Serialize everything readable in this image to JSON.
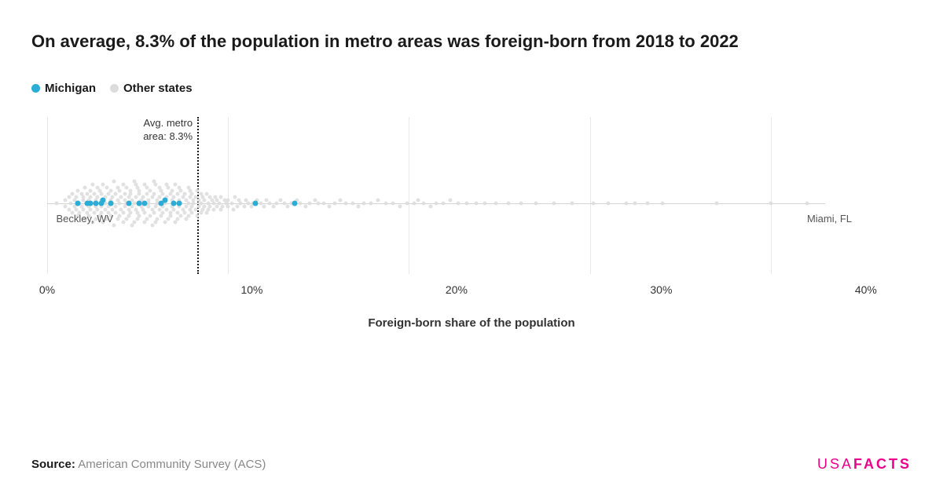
{
  "title": "On average, 8.3% of the population in metro areas was foreign-born from 2018 to 2022",
  "legend": {
    "items": [
      {
        "label": "Michigan",
        "color": "#2badd6"
      },
      {
        "label": "Other states",
        "color": "#dcdcdc"
      }
    ]
  },
  "chart": {
    "type": "beeswarm",
    "x_axis": {
      "title": "Foreign-born share of the population",
      "min": 0,
      "max": 43,
      "ticks": [
        0,
        10,
        20,
        30,
        40
      ],
      "tick_labels": [
        "0%",
        "10%",
        "20%",
        "30%",
        "40%"
      ],
      "tick_fontsize": 14,
      "title_fontsize": 15
    },
    "gridline_color": "#e8e8e8",
    "baseline_color": "#d4d4d4",
    "background_color": "#ffffff",
    "avg_line": {
      "value": 8.3,
      "label_line1": "Avg. metro",
      "label_line2": "area: 8.3%",
      "color": "#1a1a1a",
      "style": "dotted"
    },
    "callouts": [
      {
        "text": "Beckley, WV",
        "x": 0.5,
        "side": "left"
      },
      {
        "text": "Miami, FL",
        "x": 42,
        "side": "right"
      }
    ],
    "dot_size_other": 5,
    "dot_size_highlight": 7,
    "highlight_color": "#2badd6",
    "other_color": "#dcdcdc",
    "other_opacity": 0.85,
    "y_jitter_max": 28,
    "other_points": [
      {
        "x": 0.5,
        "y": 0
      },
      {
        "x": 1.0,
        "y": 4
      },
      {
        "x": 1.0,
        "y": -4
      },
      {
        "x": 1.2,
        "y": 8
      },
      {
        "x": 1.2,
        "y": -8
      },
      {
        "x": 1.3,
        "y": 0
      },
      {
        "x": 1.4,
        "y": 12
      },
      {
        "x": 1.4,
        "y": -12
      },
      {
        "x": 1.5,
        "y": 4
      },
      {
        "x": 1.5,
        "y": -4
      },
      {
        "x": 1.6,
        "y": 8
      },
      {
        "x": 1.6,
        "y": -8
      },
      {
        "x": 1.7,
        "y": 16
      },
      {
        "x": 1.7,
        "y": -16
      },
      {
        "x": 1.8,
        "y": 0
      },
      {
        "x": 1.8,
        "y": 12
      },
      {
        "x": 1.9,
        "y": -12
      },
      {
        "x": 1.9,
        "y": 4
      },
      {
        "x": 2.0,
        "y": -4
      },
      {
        "x": 2.0,
        "y": 8
      },
      {
        "x": 2.0,
        "y": -8
      },
      {
        "x": 2.1,
        "y": 20
      },
      {
        "x": 2.1,
        "y": -20
      },
      {
        "x": 2.2,
        "y": 0
      },
      {
        "x": 2.2,
        "y": 12
      },
      {
        "x": 2.2,
        "y": -12
      },
      {
        "x": 2.3,
        "y": 4
      },
      {
        "x": 2.3,
        "y": -4
      },
      {
        "x": 2.3,
        "y": 16
      },
      {
        "x": 2.4,
        "y": -16
      },
      {
        "x": 2.4,
        "y": 8
      },
      {
        "x": 2.4,
        "y": -8
      },
      {
        "x": 2.5,
        "y": 0
      },
      {
        "x": 2.5,
        "y": 24
      },
      {
        "x": 2.5,
        "y": -24
      },
      {
        "x": 2.6,
        "y": 12
      },
      {
        "x": 2.6,
        "y": -12
      },
      {
        "x": 2.7,
        "y": 4
      },
      {
        "x": 2.7,
        "y": -4
      },
      {
        "x": 2.7,
        "y": 20
      },
      {
        "x": 2.8,
        "y": -20
      },
      {
        "x": 2.8,
        "y": 8
      },
      {
        "x": 2.8,
        "y": -8
      },
      {
        "x": 2.9,
        "y": 0
      },
      {
        "x": 2.9,
        "y": 16
      },
      {
        "x": 2.9,
        "y": -16
      },
      {
        "x": 3.0,
        "y": 12
      },
      {
        "x": 3.0,
        "y": -12
      },
      {
        "x": 3.0,
        "y": 4
      },
      {
        "x": 3.0,
        "y": -4
      },
      {
        "x": 3.1,
        "y": 24
      },
      {
        "x": 3.1,
        "y": -24
      },
      {
        "x": 3.2,
        "y": 8
      },
      {
        "x": 3.2,
        "y": -8
      },
      {
        "x": 3.2,
        "y": 0
      },
      {
        "x": 3.3,
        "y": 20
      },
      {
        "x": 3.3,
        "y": -20
      },
      {
        "x": 3.4,
        "y": 12
      },
      {
        "x": 3.4,
        "y": -12
      },
      {
        "x": 3.4,
        "y": 4
      },
      {
        "x": 3.5,
        "y": -4
      },
      {
        "x": 3.5,
        "y": 16
      },
      {
        "x": 3.5,
        "y": -16
      },
      {
        "x": 3.6,
        "y": 0
      },
      {
        "x": 3.6,
        "y": 8
      },
      {
        "x": 3.6,
        "y": -8
      },
      {
        "x": 3.7,
        "y": 28
      },
      {
        "x": 3.7,
        "y": -28
      },
      {
        "x": 3.8,
        "y": 12
      },
      {
        "x": 3.8,
        "y": -12
      },
      {
        "x": 3.8,
        "y": 4
      },
      {
        "x": 3.9,
        "y": -4
      },
      {
        "x": 3.9,
        "y": 20
      },
      {
        "x": 3.9,
        "y": -20
      },
      {
        "x": 4.0,
        "y": 0
      },
      {
        "x": 4.0,
        "y": 16
      },
      {
        "x": 4.0,
        "y": -16
      },
      {
        "x": 4.1,
        "y": 8
      },
      {
        "x": 4.1,
        "y": -8
      },
      {
        "x": 4.2,
        "y": 24
      },
      {
        "x": 4.2,
        "y": -24
      },
      {
        "x": 4.2,
        "y": 12
      },
      {
        "x": 4.3,
        "y": -12
      },
      {
        "x": 4.3,
        "y": 4
      },
      {
        "x": 4.3,
        "y": -4
      },
      {
        "x": 4.4,
        "y": 0
      },
      {
        "x": 4.4,
        "y": 20
      },
      {
        "x": 4.4,
        "y": -20
      },
      {
        "x": 4.5,
        "y": 8
      },
      {
        "x": 4.5,
        "y": -8
      },
      {
        "x": 4.5,
        "y": 16
      },
      {
        "x": 4.6,
        "y": -16
      },
      {
        "x": 4.6,
        "y": 12
      },
      {
        "x": 4.6,
        "y": -12
      },
      {
        "x": 4.7,
        "y": 4
      },
      {
        "x": 4.7,
        "y": -4
      },
      {
        "x": 4.7,
        "y": 28
      },
      {
        "x": 4.8,
        "y": -28
      },
      {
        "x": 4.8,
        "y": 0
      },
      {
        "x": 4.8,
        "y": 24
      },
      {
        "x": 4.9,
        "y": -24
      },
      {
        "x": 4.9,
        "y": 8
      },
      {
        "x": 4.9,
        "y": -8
      },
      {
        "x": 5.0,
        "y": 20
      },
      {
        "x": 5.0,
        "y": -20
      },
      {
        "x": 5.0,
        "y": 12
      },
      {
        "x": 5.1,
        "y": -12
      },
      {
        "x": 5.1,
        "y": 16
      },
      {
        "x": 5.1,
        "y": -16
      },
      {
        "x": 5.2,
        "y": 4
      },
      {
        "x": 5.2,
        "y": -4
      },
      {
        "x": 5.2,
        "y": 0
      },
      {
        "x": 5.3,
        "y": 8
      },
      {
        "x": 5.3,
        "y": -8
      },
      {
        "x": 5.4,
        "y": 24
      },
      {
        "x": 5.4,
        "y": -24
      },
      {
        "x": 5.4,
        "y": 12
      },
      {
        "x": 5.5,
        "y": -12
      },
      {
        "x": 5.5,
        "y": 20
      },
      {
        "x": 5.5,
        "y": -20
      },
      {
        "x": 5.6,
        "y": 4
      },
      {
        "x": 5.6,
        "y": -4
      },
      {
        "x": 5.6,
        "y": 0
      },
      {
        "x": 5.7,
        "y": 16
      },
      {
        "x": 5.7,
        "y": -16
      },
      {
        "x": 5.8,
        "y": 8
      },
      {
        "x": 5.8,
        "y": -8
      },
      {
        "x": 5.8,
        "y": 28
      },
      {
        "x": 5.9,
        "y": -28
      },
      {
        "x": 5.9,
        "y": 12
      },
      {
        "x": 5.9,
        "y": -12
      },
      {
        "x": 6.0,
        "y": 24
      },
      {
        "x": 6.0,
        "y": -24
      },
      {
        "x": 6.0,
        "y": 4
      },
      {
        "x": 6.1,
        "y": -4
      },
      {
        "x": 6.1,
        "y": 0
      },
      {
        "x": 6.1,
        "y": 20
      },
      {
        "x": 6.2,
        "y": -20
      },
      {
        "x": 6.2,
        "y": 8
      },
      {
        "x": 6.2,
        "y": -8
      },
      {
        "x": 6.3,
        "y": 16
      },
      {
        "x": 6.3,
        "y": -16
      },
      {
        "x": 6.4,
        "y": 12
      },
      {
        "x": 6.4,
        "y": -12
      },
      {
        "x": 6.4,
        "y": 4
      },
      {
        "x": 6.5,
        "y": -4
      },
      {
        "x": 6.5,
        "y": 0
      },
      {
        "x": 6.5,
        "y": 24
      },
      {
        "x": 6.6,
        "y": -24
      },
      {
        "x": 6.6,
        "y": 8
      },
      {
        "x": 6.6,
        "y": -8
      },
      {
        "x": 6.7,
        "y": 20
      },
      {
        "x": 6.7,
        "y": -20
      },
      {
        "x": 6.8,
        "y": 12
      },
      {
        "x": 6.8,
        "y": -12
      },
      {
        "x": 6.8,
        "y": 16
      },
      {
        "x": 6.9,
        "y": -16
      },
      {
        "x": 6.9,
        "y": 4
      },
      {
        "x": 6.9,
        "y": -4
      },
      {
        "x": 7.0,
        "y": 0
      },
      {
        "x": 7.0,
        "y": 8
      },
      {
        "x": 7.0,
        "y": -8
      },
      {
        "x": 7.1,
        "y": 24
      },
      {
        "x": 7.1,
        "y": -24
      },
      {
        "x": 7.2,
        "y": 12
      },
      {
        "x": 7.2,
        "y": -12
      },
      {
        "x": 7.2,
        "y": 20
      },
      {
        "x": 7.3,
        "y": -20
      },
      {
        "x": 7.3,
        "y": 4
      },
      {
        "x": 7.3,
        "y": -4
      },
      {
        "x": 7.4,
        "y": 16
      },
      {
        "x": 7.4,
        "y": -16
      },
      {
        "x": 7.4,
        "y": 0
      },
      {
        "x": 7.5,
        "y": 8
      },
      {
        "x": 7.5,
        "y": -8
      },
      {
        "x": 7.6,
        "y": 12
      },
      {
        "x": 7.6,
        "y": -12
      },
      {
        "x": 7.7,
        "y": 4
      },
      {
        "x": 7.7,
        "y": -4
      },
      {
        "x": 7.7,
        "y": 20
      },
      {
        "x": 7.8,
        "y": -20
      },
      {
        "x": 7.8,
        "y": 0
      },
      {
        "x": 7.8,
        "y": 16
      },
      {
        "x": 7.9,
        "y": -16
      },
      {
        "x": 7.9,
        "y": 8
      },
      {
        "x": 7.9,
        "y": -8
      },
      {
        "x": 8.0,
        "y": 12
      },
      {
        "x": 8.0,
        "y": -12
      },
      {
        "x": 8.0,
        "y": 4
      },
      {
        "x": 8.1,
        "y": -4
      },
      {
        "x": 8.1,
        "y": 0
      },
      {
        "x": 8.2,
        "y": 8
      },
      {
        "x": 8.2,
        "y": -8
      },
      {
        "x": 8.3,
        "y": 16
      },
      {
        "x": 8.3,
        "y": -16
      },
      {
        "x": 8.4,
        "y": 4
      },
      {
        "x": 8.4,
        "y": -4
      },
      {
        "x": 8.5,
        "y": 12
      },
      {
        "x": 8.5,
        "y": -12
      },
      {
        "x": 8.5,
        "y": 0
      },
      {
        "x": 8.6,
        "y": 8
      },
      {
        "x": 8.6,
        "y": -8
      },
      {
        "x": 8.7,
        "y": 4
      },
      {
        "x": 8.7,
        "y": -4
      },
      {
        "x": 8.8,
        "y": 12
      },
      {
        "x": 8.8,
        "y": -12
      },
      {
        "x": 8.9,
        "y": 0
      },
      {
        "x": 8.9,
        "y": 8
      },
      {
        "x": 9.0,
        "y": -8
      },
      {
        "x": 9.0,
        "y": 4
      },
      {
        "x": 9.1,
        "y": -4
      },
      {
        "x": 9.2,
        "y": 0
      },
      {
        "x": 9.2,
        "y": 8
      },
      {
        "x": 9.3,
        "y": -8
      },
      {
        "x": 9.4,
        "y": 4
      },
      {
        "x": 9.4,
        "y": -4
      },
      {
        "x": 9.5,
        "y": 0
      },
      {
        "x": 9.6,
        "y": 8
      },
      {
        "x": 9.6,
        "y": -8
      },
      {
        "x": 9.7,
        "y": 4
      },
      {
        "x": 9.8,
        "y": -4
      },
      {
        "x": 9.9,
        "y": 0
      },
      {
        "x": 10.0,
        "y": 4
      },
      {
        "x": 10.0,
        "y": -4
      },
      {
        "x": 10.2,
        "y": 0
      },
      {
        "x": 10.3,
        "y": 8
      },
      {
        "x": 10.4,
        "y": -8
      },
      {
        "x": 10.5,
        "y": 4
      },
      {
        "x": 10.6,
        "y": -4
      },
      {
        "x": 10.7,
        "y": 0
      },
      {
        "x": 10.9,
        "y": 4
      },
      {
        "x": 11.0,
        "y": -4
      },
      {
        "x": 11.1,
        "y": 0
      },
      {
        "x": 11.3,
        "y": 4
      },
      {
        "x": 11.4,
        "y": 0
      },
      {
        "x": 11.6,
        "y": -4
      },
      {
        "x": 11.8,
        "y": 0
      },
      {
        "x": 12.0,
        "y": 4
      },
      {
        "x": 12.1,
        "y": -4
      },
      {
        "x": 12.3,
        "y": 0
      },
      {
        "x": 12.5,
        "y": 4
      },
      {
        "x": 12.7,
        "y": 0
      },
      {
        "x": 12.9,
        "y": -4
      },
      {
        "x": 13.1,
        "y": 0
      },
      {
        "x": 13.3,
        "y": 4
      },
      {
        "x": 13.5,
        "y": 0
      },
      {
        "x": 13.8,
        "y": -4
      },
      {
        "x": 14.0,
        "y": 0
      },
      {
        "x": 14.3,
        "y": 4
      },
      {
        "x": 14.5,
        "y": 0
      },
      {
        "x": 14.8,
        "y": -4
      },
      {
        "x": 15.0,
        "y": 0
      },
      {
        "x": 15.3,
        "y": 0
      },
      {
        "x": 15.6,
        "y": 4
      },
      {
        "x": 15.9,
        "y": 0
      },
      {
        "x": 16.2,
        "y": -4
      },
      {
        "x": 16.5,
        "y": 0
      },
      {
        "x": 16.9,
        "y": 0
      },
      {
        "x": 17.2,
        "y": 4
      },
      {
        "x": 17.5,
        "y": 0
      },
      {
        "x": 17.9,
        "y": 0
      },
      {
        "x": 18.3,
        "y": -4
      },
      {
        "x": 18.7,
        "y": 0
      },
      {
        "x": 19.1,
        "y": 0
      },
      {
        "x": 19.5,
        "y": 4
      },
      {
        "x": 19.9,
        "y": 0
      },
      {
        "x": 20.3,
        "y": 0
      },
      {
        "x": 20.5,
        "y": -4
      },
      {
        "x": 20.8,
        "y": 0
      },
      {
        "x": 21.2,
        "y": 4
      },
      {
        "x": 21.5,
        "y": 0
      },
      {
        "x": 21.9,
        "y": 0
      },
      {
        "x": 22.3,
        "y": -4
      },
      {
        "x": 22.7,
        "y": 0
      },
      {
        "x": 23.2,
        "y": 0
      },
      {
        "x": 23.7,
        "y": 0
      },
      {
        "x": 24.2,
        "y": 0
      },
      {
        "x": 24.8,
        "y": 0
      },
      {
        "x": 25.5,
        "y": 0
      },
      {
        "x": 26.2,
        "y": 0
      },
      {
        "x": 27.0,
        "y": 0
      },
      {
        "x": 28.0,
        "y": 0
      },
      {
        "x": 29.0,
        "y": 0
      },
      {
        "x": 30.2,
        "y": 0
      },
      {
        "x": 31.0,
        "y": 0
      },
      {
        "x": 32.0,
        "y": 0
      },
      {
        "x": 32.5,
        "y": 0
      },
      {
        "x": 33.2,
        "y": 0
      },
      {
        "x": 34.0,
        "y": 0
      },
      {
        "x": 37.0,
        "y": 0
      },
      {
        "x": 40.0,
        "y": 0
      },
      {
        "x": 42.0,
        "y": 0
      }
    ],
    "highlight_points": [
      {
        "x": 1.7,
        "y": 0
      },
      {
        "x": 2.2,
        "y": 0
      },
      {
        "x": 2.4,
        "y": 0
      },
      {
        "x": 2.7,
        "y": 0
      },
      {
        "x": 3.0,
        "y": 0
      },
      {
        "x": 3.1,
        "y": -4
      },
      {
        "x": 3.5,
        "y": 0
      },
      {
        "x": 4.5,
        "y": 0
      },
      {
        "x": 5.1,
        "y": 0
      },
      {
        "x": 5.4,
        "y": 0
      },
      {
        "x": 6.3,
        "y": 0
      },
      {
        "x": 6.5,
        "y": -4
      },
      {
        "x": 7.0,
        "y": 0
      },
      {
        "x": 7.3,
        "y": 0
      },
      {
        "x": 11.5,
        "y": 0
      },
      {
        "x": 13.7,
        "y": 0
      }
    ]
  },
  "source": {
    "label": "Source:",
    "value": "American Community Survey (ACS)"
  },
  "logo": {
    "part1": "USA",
    "part2": "FACTS",
    "color": "#ec008c"
  }
}
